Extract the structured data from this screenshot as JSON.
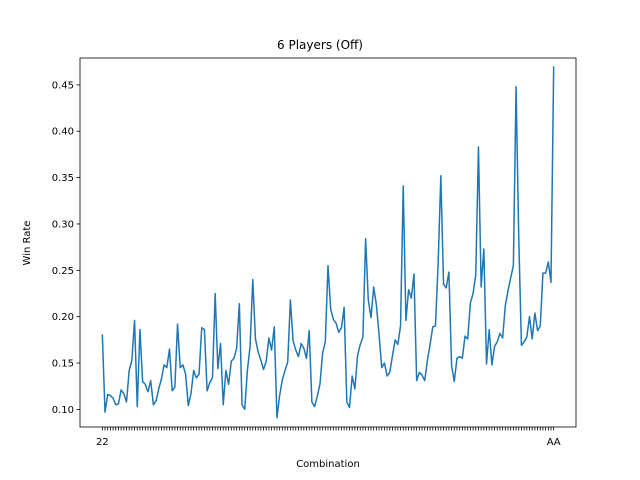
{
  "chart_data": {
    "type": "line",
    "title": "6 Players (Off)",
    "xlabel": "Combination",
    "ylabel": "Win Rate",
    "ylim": [
      0.081,
      0.479
    ],
    "yticks": [
      0.1,
      0.15,
      0.2,
      0.25,
      0.3,
      0.35,
      0.4,
      0.45
    ],
    "ytick_labels": [
      "0.10",
      "0.15",
      "0.20",
      "0.25",
      "0.30",
      "0.35",
      "0.40",
      "0.45"
    ],
    "grid": false,
    "legend": "none",
    "x_tick_labels_visible": [
      "22",
      "AA"
    ],
    "series": [
      {
        "color": "#1f77b4",
        "values": [
          0.181,
          0.097,
          0.116,
          0.115,
          0.112,
          0.105,
          0.106,
          0.121,
          0.117,
          0.108,
          0.142,
          0.153,
          0.196,
          0.103,
          0.186,
          0.13,
          0.127,
          0.119,
          0.131,
          0.105,
          0.109,
          0.122,
          0.133,
          0.148,
          0.145,
          0.165,
          0.12,
          0.124,
          0.192,
          0.145,
          0.148,
          0.138,
          0.104,
          0.117,
          0.142,
          0.134,
          0.138,
          0.188,
          0.186,
          0.12,
          0.129,
          0.134,
          0.225,
          0.144,
          0.171,
          0.105,
          0.142,
          0.127,
          0.152,
          0.155,
          0.166,
          0.214,
          0.105,
          0.1,
          0.142,
          0.168,
          0.24,
          0.176,
          0.162,
          0.153,
          0.143,
          0.152,
          0.177,
          0.164,
          0.189,
          0.091,
          0.115,
          0.132,
          0.142,
          0.151,
          0.218,
          0.174,
          0.164,
          0.157,
          0.171,
          0.166,
          0.155,
          0.185,
          0.108,
          0.103,
          0.114,
          0.127,
          0.161,
          0.173,
          0.255,
          0.208,
          0.197,
          0.193,
          0.183,
          0.188,
          0.21,
          0.108,
          0.102,
          0.136,
          0.122,
          0.158,
          0.17,
          0.178,
          0.284,
          0.218,
          0.199,
          0.232,
          0.213,
          0.181,
          0.145,
          0.15,
          0.136,
          0.14,
          0.158,
          0.175,
          0.17,
          0.19,
          0.341,
          0.196,
          0.229,
          0.22,
          0.246,
          0.131,
          0.14,
          0.137,
          0.131,
          0.153,
          0.17,
          0.189,
          0.19,
          0.258,
          0.352,
          0.235,
          0.231,
          0.248,
          0.147,
          0.13,
          0.155,
          0.157,
          0.155,
          0.179,
          0.176,
          0.215,
          0.225,
          0.245,
          0.383,
          0.232,
          0.273,
          0.149,
          0.186,
          0.148,
          0.168,
          0.173,
          0.182,
          0.177,
          0.212,
          0.228,
          0.242,
          0.255,
          0.448,
          0.285,
          0.169,
          0.173,
          0.178,
          0.2,
          0.176,
          0.204,
          0.185,
          0.19,
          0.247,
          0.247,
          0.259,
          0.237,
          0.47
        ]
      }
    ]
  }
}
